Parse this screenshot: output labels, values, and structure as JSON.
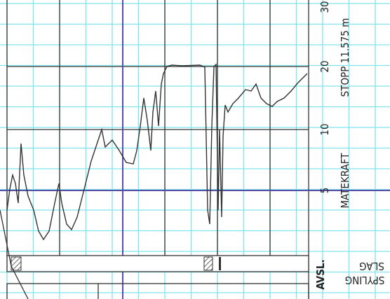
{
  "ticks": [
    "5",
    "10",
    "20",
    "30"
  ],
  "stop": "STOPP 11.575 m",
  "axis_title": "MATEKRAFT",
  "bars": [
    "AVSL.",
    "SLAG",
    "SPYLING"
  ]
}
